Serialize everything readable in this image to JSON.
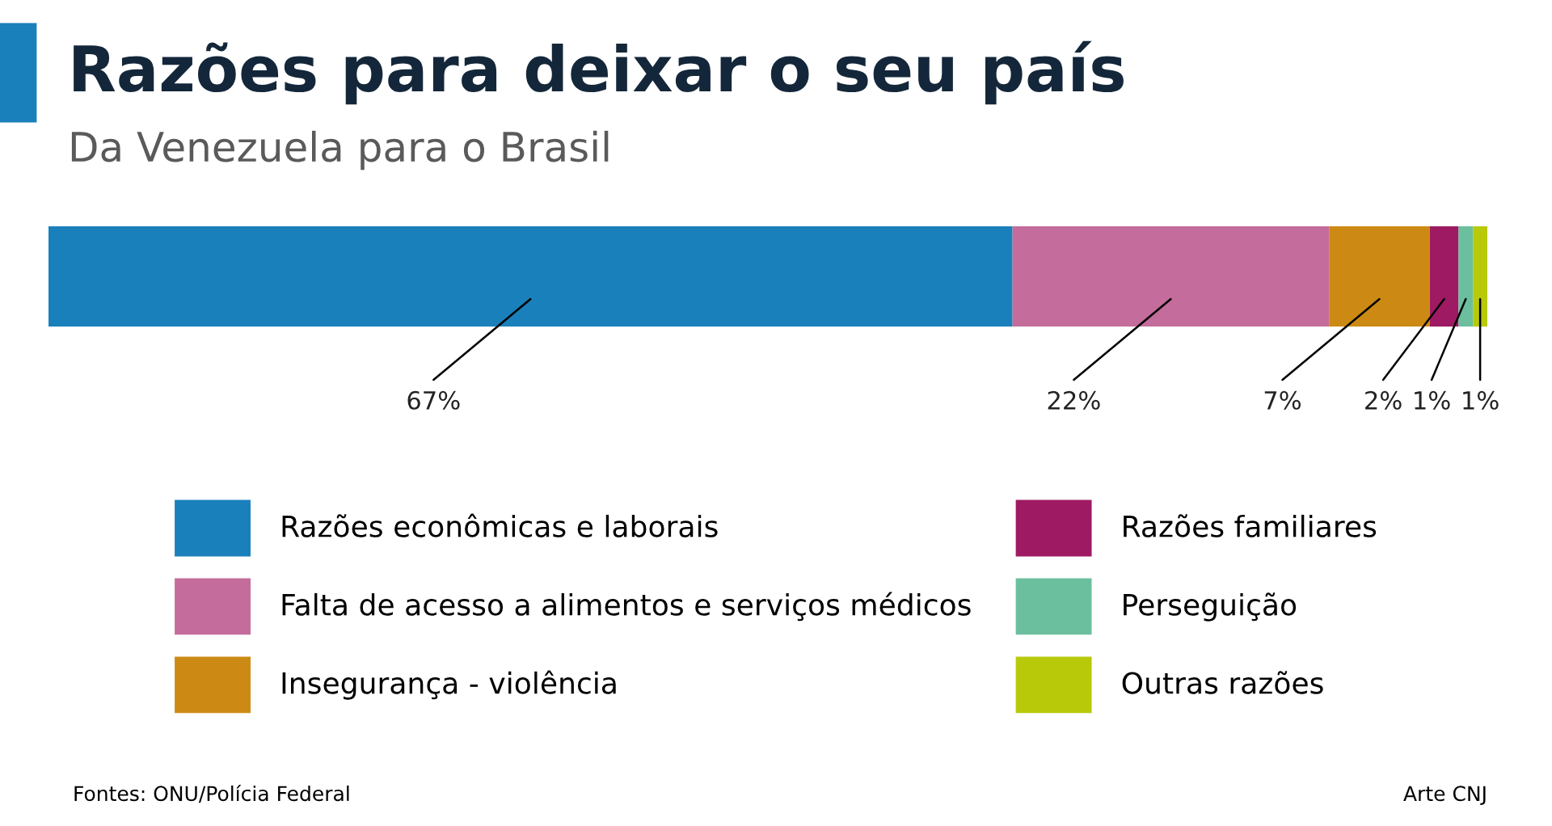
{
  "chart_data": {
    "type": "bar",
    "title": "Razões para deixar o seu país",
    "subtitle": "Da Venezuela para o Brasil",
    "categories": [
      null
    ],
    "stacked": true,
    "orientation": "horizontal",
    "tick_labels": false,
    "legend": "bottom",
    "series": [
      {
        "name": "Razões econômicas e laborais",
        "color": "#1a80bb",
        "values": [
          67
        ],
        "value_labels": [
          "67%"
        ]
      },
      {
        "name": "Falta de acesso a alimentos e serviços médicos",
        "color": "#c46c9c",
        "values": [
          22
        ],
        "value_labels": [
          "22%"
        ]
      },
      {
        "name": "Insegurança - violência",
        "color": "#cc8a14",
        "values": [
          7
        ],
        "value_labels": [
          "7%"
        ]
      },
      {
        "name": "Razões familiares",
        "color": "#9e1a62",
        "values": [
          2
        ],
        "value_labels": [
          "2%"
        ]
      },
      {
        "name": "Perseguição",
        "color": "#6cbf9e",
        "values": [
          1
        ],
        "value_labels": [
          "1%"
        ]
      },
      {
        "name": "Outras razões",
        "color": "#b8c90a",
        "values": [
          1
        ],
        "value_labels": [
          "1%"
        ]
      }
    ],
    "annotations": [
      "Fontes: ONU/Polícia Federal",
      "Arte CNJ"
    ]
  }
}
